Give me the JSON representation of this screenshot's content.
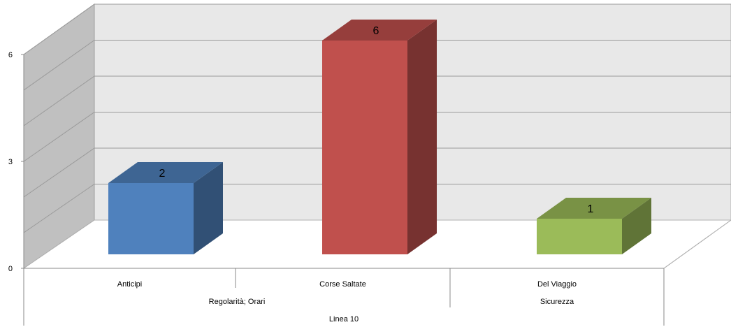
{
  "chart_data": {
    "type": "bar",
    "three_d": true,
    "categories": [
      "Anticipi",
      "Corse Saltate",
      "Del Viaggio"
    ],
    "groups": [
      {
        "label": "Regolarità; Orari",
        "categories": [
          "Anticipi",
          "Corse Saltate"
        ]
      },
      {
        "label": "Sicurezza",
        "categories": [
          "Del Viaggio"
        ]
      }
    ],
    "top_group": "Linea 10",
    "values": [
      2,
      6,
      1
    ],
    "data_labels": [
      "2",
      "6",
      "1"
    ],
    "colors": [
      "#4f81bd",
      "#c0504d",
      "#9bbb59"
    ],
    "ylim": [
      0,
      6
    ],
    "y_ticks": [
      0,
      3,
      6
    ],
    "y_tick_labels": [
      "0",
      "3",
      "6"
    ],
    "grid": true,
    "legend": "none"
  }
}
